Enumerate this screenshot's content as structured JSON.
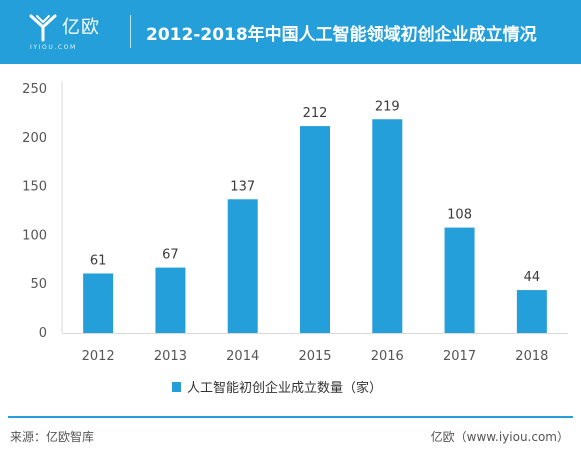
{
  "header": {
    "brand_name": "亿欧",
    "brand_sub": "IYIOU.COM",
    "title": "2012-2018年中国人工智能领域初创企业成立情况",
    "bg_color": "#259fd9"
  },
  "chart_data": {
    "type": "bar",
    "categories": [
      "2012",
      "2013",
      "2014",
      "2015",
      "2016",
      "2017",
      "2018"
    ],
    "values": [
      61,
      67,
      137,
      212,
      219,
      108,
      44
    ],
    "data_labels": [
      "61",
      "67",
      "137",
      "212",
      "219",
      "108",
      "44"
    ],
    "series": [
      {
        "name": "人工智能初创企业成立数量（家）",
        "values": [
          61,
          67,
          137,
          212,
          219,
          108,
          44
        ],
        "color": "#259fd9"
      }
    ],
    "y_ticks": [
      "250",
      "200",
      "150",
      "100",
      "50",
      "0"
    ],
    "ylim": [
      0,
      250
    ],
    "grid": false,
    "legend_position": "bottom"
  },
  "footer": {
    "source": "来源：亿欧智库",
    "site": "亿欧（www.iyiou.com）",
    "line_color": "#259fd9"
  }
}
